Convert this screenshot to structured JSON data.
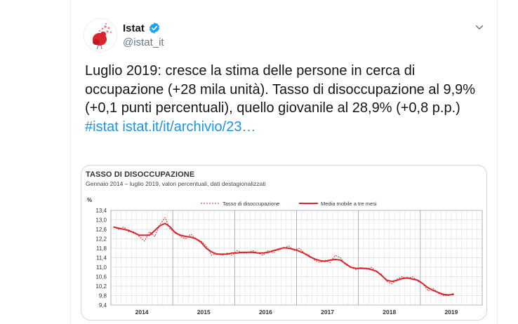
{
  "tweet": {
    "name": "Istat",
    "handle": "@istat_it",
    "text_plain": "Luglio 2019: cresce la stima delle persone in cerca di occupazione (+28 mila unità). Tasso di disoccupazione al 9,9% (+0,1 punti percentuali), quello giovanile al 28,9% (+0,8 p.p.) ",
    "hashtag": "#istat",
    "link": "istat.it/it/archivio/23…",
    "icons": [
      "avatar-logo-icon",
      "verified-badge-icon",
      "chevron-down-icon"
    ],
    "colors": {
      "link": "#1b95e0",
      "verified": "#1da1f2",
      "handle": "#657786"
    }
  },
  "chart_data": {
    "type": "line",
    "title": "TASSO DI DISOCCUPAZIONE",
    "subtitle": "Gennaio 2014 – luglio 2019, valori percentuali, dati destagionalizzati",
    "ylabel": "%",
    "ylim": [
      9.4,
      13.4
    ],
    "yticks": [
      "13,4",
      "13,0",
      "12,6",
      "12,2",
      "11,8",
      "11,4",
      "11,0",
      "10,6",
      "10,2",
      "9,8",
      "9,4"
    ],
    "xticks": [
      "2014",
      "2015",
      "2016",
      "2017",
      "2018",
      "2019"
    ],
    "grid": true,
    "legend_placement": "top-center",
    "series": [
      {
        "name": "Tasso di disoccupazione",
        "style": "dashed",
        "color": "#d9252b",
        "values": [
          12.7,
          12.6,
          12.7,
          12.5,
          12.5,
          12.3,
          12.1,
          12.5,
          12.3,
          12.8,
          13.1,
          12.6,
          12.5,
          12.3,
          12.2,
          12.4,
          12.2,
          12.1,
          11.9,
          11.5,
          11.6,
          11.5,
          11.6,
          11.5,
          11.7,
          11.6,
          11.6,
          11.7,
          11.6,
          11.5,
          11.7,
          11.6,
          11.8,
          11.8,
          11.9,
          11.7,
          11.8,
          11.6,
          11.5,
          11.3,
          11.2,
          11.3,
          11.2,
          11.5,
          11.4,
          11.1,
          11.0,
          10.9,
          11.0,
          10.9,
          11.0,
          10.8,
          10.7,
          10.4,
          10.3,
          10.5,
          10.6,
          10.5,
          10.6,
          10.4,
          10.3,
          10.0,
          10.1,
          9.9,
          9.8,
          9.8,
          9.9
        ]
      },
      {
        "name": "Media mobile a tre mesi",
        "style": "solid",
        "color": "#d9252b",
        "values": [
          12.7,
          12.65,
          12.6,
          12.55,
          12.45,
          12.35,
          12.35,
          12.35,
          12.55,
          12.75,
          12.85,
          12.7,
          12.45,
          12.35,
          12.3,
          12.27,
          12.2,
          12.05,
          11.8,
          11.65,
          11.55,
          11.55,
          11.55,
          11.6,
          11.6,
          11.63,
          11.63,
          11.63,
          11.6,
          11.6,
          11.63,
          11.7,
          11.75,
          11.82,
          11.8,
          11.75,
          11.68,
          11.58,
          11.45,
          11.35,
          11.28,
          11.25,
          11.3,
          11.33,
          11.3,
          11.15,
          11.0,
          10.95,
          10.95,
          10.95,
          10.9,
          10.83,
          10.65,
          10.45,
          10.4,
          10.45,
          10.52,
          10.55,
          10.5,
          10.45,
          10.3,
          10.13,
          10.02,
          9.93,
          9.85,
          9.83,
          9.85
        ]
      }
    ]
  }
}
